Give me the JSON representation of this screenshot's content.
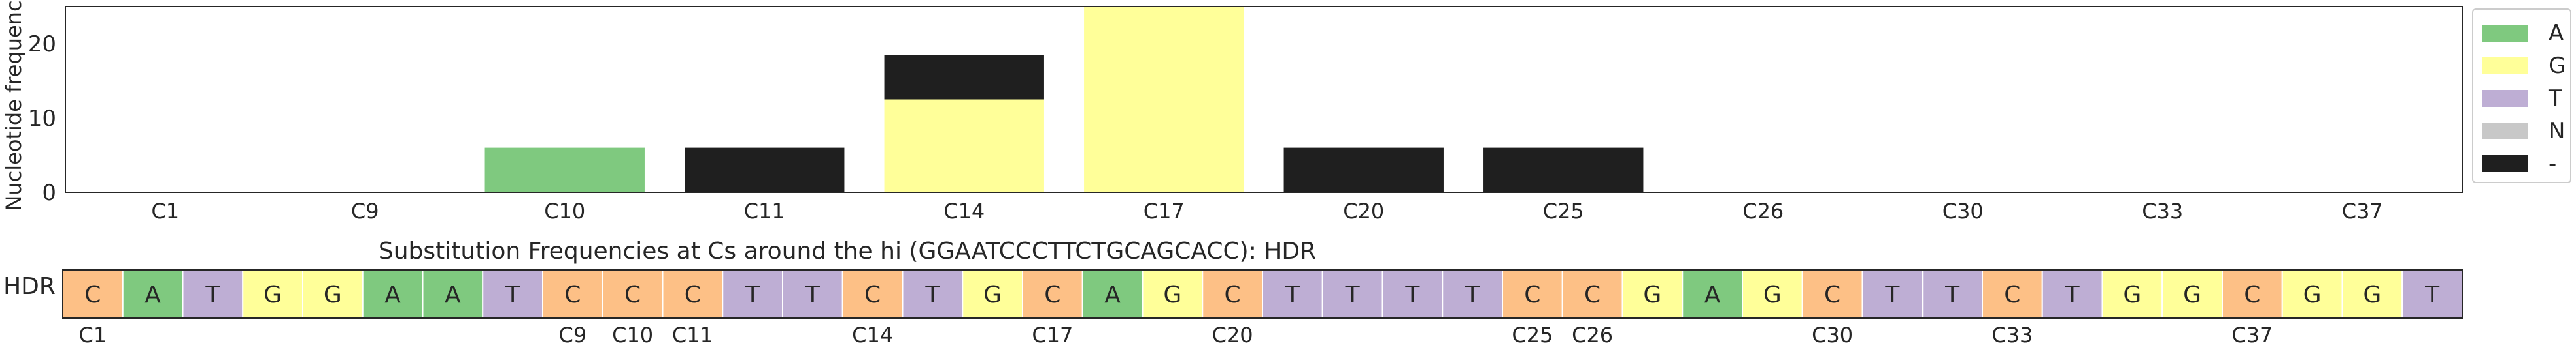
{
  "chart_data": [
    {
      "type": "bar",
      "stacked": true,
      "ylabel": "Nucleotide frequency",
      "ylim": [
        0,
        25
      ],
      "yticks": [
        0,
        10,
        20
      ],
      "grid": false,
      "legend_position": "right",
      "categories": [
        "C1",
        "C9",
        "C10",
        "C11",
        "C14",
        "C17",
        "C20",
        "C25",
        "C26",
        "C30",
        "C33",
        "C37"
      ],
      "series": [
        {
          "name": "A",
          "color": "#7fc97f",
          "values": [
            0,
            0,
            6,
            0,
            0,
            0,
            0,
            0,
            0,
            0,
            0,
            0
          ]
        },
        {
          "name": "G",
          "color": "#ffff99",
          "values": [
            0,
            0,
            0,
            0,
            12.5,
            25,
            0,
            0,
            0,
            0,
            0,
            0
          ]
        },
        {
          "name": "T",
          "color": "#beaed4",
          "values": [
            0,
            0,
            0,
            0,
            0,
            0,
            0,
            0,
            0,
            0,
            0,
            0
          ]
        },
        {
          "name": "N",
          "color": "#c8c8c8",
          "values": [
            0,
            0,
            0,
            0,
            0,
            0,
            0,
            0,
            0,
            0,
            0,
            0
          ]
        },
        {
          "name": "-",
          "color": "#1f1f1f",
          "values": [
            0,
            0,
            0,
            6,
            6,
            0,
            6,
            6,
            0,
            0,
            0,
            0
          ]
        }
      ]
    },
    {
      "type": "table",
      "title": "Substitution Frequencies at Cs around the hi (GGAATCCCTTCTGCAGCACC): HDR",
      "row_label": "HDR",
      "sequence": [
        "C",
        "A",
        "T",
        "G",
        "G",
        "A",
        "A",
        "T",
        "C",
        "C",
        "C",
        "T",
        "T",
        "C",
        "T",
        "G",
        "C",
        "A",
        "G",
        "C",
        "T",
        "T",
        "T",
        "T",
        "C",
        "C",
        "G",
        "A",
        "G",
        "C",
        "T",
        "T",
        "C",
        "T",
        "G",
        "G",
        "C",
        "G",
        "G",
        "T"
      ],
      "base_colors": {
        "A": "#7fc97f",
        "C": "#fdc086",
        "G": "#ffff99",
        "T": "#beaed4"
      },
      "c_labels": [
        {
          "index": 0,
          "label": "C1"
        },
        {
          "index": 8,
          "label": "C9"
        },
        {
          "index": 9,
          "label": "C10"
        },
        {
          "index": 10,
          "label": "C11"
        },
        {
          "index": 13,
          "label": "C14"
        },
        {
          "index": 16,
          "label": "C17"
        },
        {
          "index": 19,
          "label": "C20"
        },
        {
          "index": 24,
          "label": "C25"
        },
        {
          "index": 25,
          "label": "C26"
        },
        {
          "index": 29,
          "label": "C30"
        },
        {
          "index": 32,
          "label": "C33"
        },
        {
          "index": 36,
          "label": "C37"
        }
      ]
    }
  ]
}
